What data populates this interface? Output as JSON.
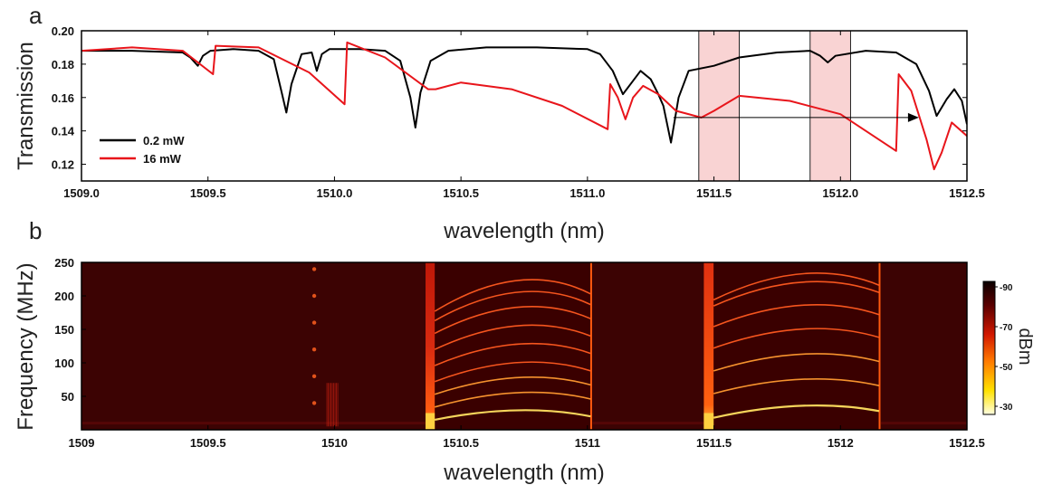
{
  "chart_data": [
    {
      "panel": "a",
      "type": "line",
      "xlabel": "wavelength (nm)",
      "ylabel": "Transmission",
      "xlim": [
        1509.0,
        1512.5
      ],
      "ylim": [
        0.11,
        0.2
      ],
      "xticks": [
        "1509.0",
        "1509.5",
        "1510.0",
        "1510.5",
        "1511.0",
        "1511.5",
        "1512.0",
        "1512.5"
      ],
      "yticks": [
        "0.12",
        "0.14",
        "0.16",
        "0.18",
        "0.20"
      ],
      "legend_position": "bottom-left",
      "highlight_regions": [
        [
          1511.44,
          1511.6
        ],
        [
          1511.88,
          1512.04
        ]
      ],
      "annotation": {
        "type": "arrow",
        "from": [
          1511.34,
          0.148
        ],
        "to": [
          1512.31,
          0.148
        ]
      },
      "series": [
        {
          "name": "0.2 mW",
          "color": "#000000",
          "x": [
            1509.0,
            1509.2,
            1509.4,
            1509.43,
            1509.46,
            1509.48,
            1509.51,
            1509.6,
            1509.7,
            1509.76,
            1509.79,
            1509.81,
            1509.83,
            1509.87,
            1509.91,
            1509.93,
            1509.95,
            1509.98,
            1510.1,
            1510.2,
            1510.26,
            1510.3,
            1510.32,
            1510.34,
            1510.38,
            1510.45,
            1510.6,
            1510.8,
            1511.0,
            1511.05,
            1511.1,
            1511.14,
            1511.18,
            1511.21,
            1511.25,
            1511.28,
            1511.3,
            1511.33,
            1511.36,
            1511.4,
            1511.5,
            1511.6,
            1511.75,
            1511.88,
            1511.92,
            1511.95,
            1511.98,
            1512.1,
            1512.22,
            1512.3,
            1512.35,
            1512.38,
            1512.42,
            1512.45,
            1512.48,
            1512.5
          ],
          "y": [
            0.188,
            0.188,
            0.187,
            0.184,
            0.179,
            0.185,
            0.188,
            0.189,
            0.188,
            0.183,
            0.164,
            0.151,
            0.168,
            0.186,
            0.187,
            0.176,
            0.186,
            0.189,
            0.189,
            0.188,
            0.182,
            0.16,
            0.142,
            0.163,
            0.182,
            0.188,
            0.19,
            0.19,
            0.189,
            0.186,
            0.176,
            0.162,
            0.17,
            0.176,
            0.171,
            0.162,
            0.155,
            0.133,
            0.16,
            0.176,
            0.179,
            0.184,
            0.187,
            0.188,
            0.185,
            0.181,
            0.185,
            0.188,
            0.187,
            0.18,
            0.164,
            0.149,
            0.159,
            0.165,
            0.158,
            0.144
          ]
        },
        {
          "name": "16 mW",
          "color": "#e8151b",
          "x": [
            1509.0,
            1509.2,
            1509.4,
            1509.52,
            1509.53,
            1509.7,
            1509.9,
            1510.04,
            1510.05,
            1510.2,
            1510.37,
            1510.4,
            1510.5,
            1510.7,
            1510.9,
            1511.08,
            1511.09,
            1511.12,
            1511.15,
            1511.18,
            1511.22,
            1511.28,
            1511.35,
            1511.45,
            1511.5,
            1511.6,
            1511.8,
            1512.0,
            1512.22,
            1512.23,
            1512.28,
            1512.34,
            1512.37,
            1512.4,
            1512.44,
            1512.5
          ],
          "y": [
            0.188,
            0.19,
            0.188,
            0.174,
            0.191,
            0.19,
            0.175,
            0.156,
            0.193,
            0.184,
            0.165,
            0.165,
            0.169,
            0.165,
            0.155,
            0.141,
            0.168,
            0.16,
            0.147,
            0.16,
            0.167,
            0.162,
            0.152,
            0.148,
            0.152,
            0.161,
            0.158,
            0.15,
            0.128,
            0.174,
            0.164,
            0.135,
            0.117,
            0.127,
            0.145,
            0.137
          ]
        }
      ]
    },
    {
      "panel": "b",
      "type": "heatmap",
      "xlabel": "wavelength (nm)",
      "ylabel": "Frequency (MHz)",
      "xlim": [
        1509.0,
        1512.5
      ],
      "ylim": [
        0,
        250
      ],
      "xticks": [
        "1509",
        "1509.5",
        "1510",
        "1510.5",
        "1511",
        "1511.5",
        "1512",
        "1512.5"
      ],
      "yticks": [
        "50",
        "100",
        "150",
        "200",
        "250"
      ],
      "colorbar": {
        "label": "dBm",
        "ticks": [
          "-90",
          "-70",
          "-50",
          "-30"
        ],
        "colors": [
          "#000000",
          "#5a0000",
          "#c01800",
          "#ff5a00",
          "#ffcc00",
          "#ffffcc"
        ]
      },
      "oscillation_bands": [
        {
          "x_start": 1510.36,
          "x_end": 1511.02,
          "harmonic_frequencies_mhz": [
            30,
            60,
            85,
            110,
            140,
            170,
            200,
            225,
            245
          ]
        },
        {
          "x_start": 1511.46,
          "x_end": 1512.16,
          "harmonic_frequencies_mhz": [
            38,
            80,
            120,
            160,
            198,
            235,
            250
          ]
        },
        {
          "x_start": 1509.86,
          "x_end": 1510.06,
          "harmonic_frequencies_mhz": [
            40,
            80,
            120,
            160,
            200,
            240
          ]
        }
      ]
    }
  ]
}
